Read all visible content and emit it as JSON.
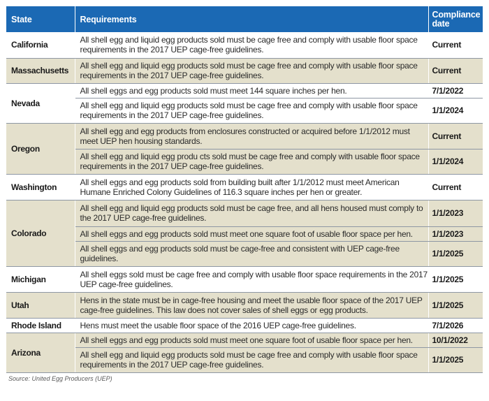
{
  "header": {
    "state": "State",
    "requirements": "Requirements",
    "date_line1": "Compliance",
    "date_line2": "date"
  },
  "rows": [
    {
      "state": "California",
      "requirement": "All shell egg and liquid egg products sold must be cage free and comply with usable floor space requirements in the 2017 UEP cage-free guidelines.",
      "date": "Current"
    },
    {
      "state": "Massachusetts",
      "requirement": "All shell egg and liquid egg products sold must be cage free and comply with usable floor space requirements in the 2017 UEP cage-free guidelines.",
      "date": "Current"
    },
    {
      "state": "Nevada",
      "requirement": "All shell eggs and egg products sold must meet 144 square inches per hen.",
      "date": "7/1/2022"
    },
    {
      "state": "",
      "requirement": "All shell egg and liquid egg products sold must be cage free and comply with usable floor space requirements in the 2017 UEP cage-free guidelines.",
      "date": "1/1/2024"
    },
    {
      "state": "Oregon",
      "requirement": "All shell egg and egg products from enclosures constructed or acquired before 1/1/2012 must meet UEP hen housing standards.",
      "date": "Current"
    },
    {
      "state": "",
      "requirement": "All shell egg and liquid egg produ cts sold must be cage free and comply with usable floor space requirements in the 2017 UEP cage-free guidelines.",
      "date": "1/1/2024"
    },
    {
      "state": "Washington",
      "requirement": "All shell eggs and egg products sold from building built after 1/1/2012 must meet American Humane Enriched Colony Guidelines of 116.3 square inches per hen or greater.",
      "date": "Current"
    },
    {
      "state": "Colorado",
      "requirement": "All shell egg and liquid egg products sold must be cage free, and all hens housed must comply to the 2017 UEP cage-free guidelines.",
      "date": "1/1/2023"
    },
    {
      "state": "",
      "requirement": "All shell eggs and egg products sold must meet one square foot of usable floor space per hen.",
      "date": "1/1/2023"
    },
    {
      "state": "",
      "requirement": "All shell eggs and egg products sold must be cage-free and consistent with UEP cage-free guidelines.",
      "date": "1/1/2025"
    },
    {
      "state": "Michigan",
      "requirement": "All shell eggs sold must be cage free and comply with usable floor space requirements in the 2017 UEP cage-free guidelines.",
      "date": "1/1/2025"
    },
    {
      "state": "Utah",
      "requirement": "Hens in the state must be in cage-free housing and meet the usable floor space of the 2017 UEP cage-free guidelines. This law does not cover sales of shell eggs or egg products.",
      "date": "1/1/2025"
    },
    {
      "state": "Rhode Island",
      "requirement": "Hens must meet the usable floor space of the 2016 UEP cage-free guidelines.",
      "date": "7/1/2026"
    },
    {
      "state": "Arizona",
      "requirement": "All shell eggs and egg products sold must meet one square foot of usable floor space per hen.",
      "date": "10/1/2022"
    },
    {
      "state": "",
      "requirement": "All shell egg and liquid egg products sold must be cage free and comply with usable floor space requirements in the 2017 UEP cage-free guidelines.",
      "date": "1/1/2025"
    }
  ],
  "source": "Source: United Egg Producers (UEP)"
}
